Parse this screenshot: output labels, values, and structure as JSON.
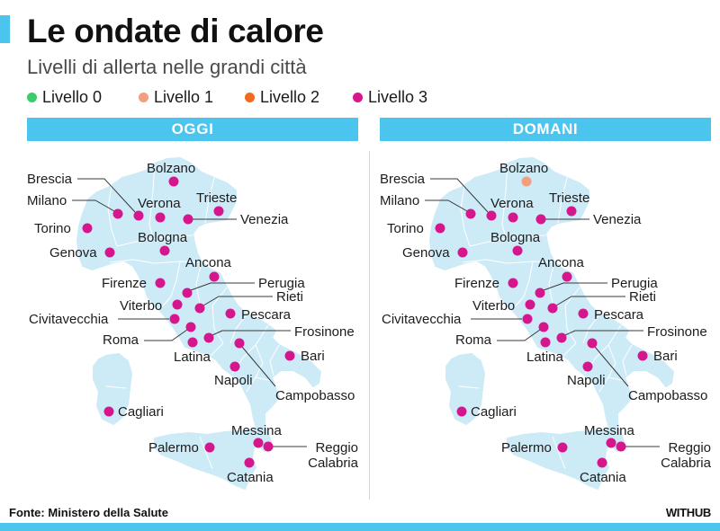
{
  "header": {
    "title": "Le ondate di calore",
    "subtitle": "Livelli di allerta nelle grandi città"
  },
  "legend": [
    {
      "level": 0,
      "label": "Livello 0",
      "color": "#3ecb6c"
    },
    {
      "level": 1,
      "label": "Livello 1",
      "color": "#f2a07c"
    },
    {
      "level": 2,
      "label": "Livello 2",
      "color": "#f26a1e"
    },
    {
      "level": 3,
      "label": "Livello 3",
      "color": "#d5168c"
    }
  ],
  "colors": {
    "accent": "#4bc4ee",
    "map_fill": "#cdeaf7"
  },
  "panels": [
    {
      "title": "OGGI",
      "cities": [
        {
          "name": "Bolzano",
          "level": 3
        },
        {
          "name": "Brescia",
          "level": 3
        },
        {
          "name": "Milano",
          "level": 3
        },
        {
          "name": "Verona",
          "level": 3
        },
        {
          "name": "Trieste",
          "level": 3
        },
        {
          "name": "Venezia",
          "level": 3
        },
        {
          "name": "Torino",
          "level": 3
        },
        {
          "name": "Genova",
          "level": 3
        },
        {
          "name": "Bologna",
          "level": 3
        },
        {
          "name": "Ancona",
          "level": 3
        },
        {
          "name": "Firenze",
          "level": 3
        },
        {
          "name": "Perugia",
          "level": 3
        },
        {
          "name": "Rieti",
          "level": 3
        },
        {
          "name": "Viterbo",
          "level": 3
        },
        {
          "name": "Civitavecchia",
          "level": 3
        },
        {
          "name": "Pescara",
          "level": 3
        },
        {
          "name": "Roma",
          "level": 3
        },
        {
          "name": "Frosinone",
          "level": 3
        },
        {
          "name": "Latina",
          "level": 3
        },
        {
          "name": "Campobasso",
          "level": 3
        },
        {
          "name": "Bari",
          "level": 3
        },
        {
          "name": "Napoli",
          "level": 3
        },
        {
          "name": "Cagliari",
          "level": 3
        },
        {
          "name": "Palermo",
          "level": 3
        },
        {
          "name": "Messina",
          "level": 3
        },
        {
          "name": "Reggio Calabria",
          "level": 3
        },
        {
          "name": "Catania",
          "level": 3
        }
      ]
    },
    {
      "title": "DOMANI",
      "cities": [
        {
          "name": "Bolzano",
          "level": 1
        },
        {
          "name": "Brescia",
          "level": 3
        },
        {
          "name": "Milano",
          "level": 3
        },
        {
          "name": "Verona",
          "level": 3
        },
        {
          "name": "Trieste",
          "level": 3
        },
        {
          "name": "Venezia",
          "level": 3
        },
        {
          "name": "Torino",
          "level": 3
        },
        {
          "name": "Genova",
          "level": 3
        },
        {
          "name": "Bologna",
          "level": 3
        },
        {
          "name": "Ancona",
          "level": 3
        },
        {
          "name": "Firenze",
          "level": 3
        },
        {
          "name": "Perugia",
          "level": 3
        },
        {
          "name": "Rieti",
          "level": 3
        },
        {
          "name": "Viterbo",
          "level": 3
        },
        {
          "name": "Civitavecchia",
          "level": 3
        },
        {
          "name": "Pescara",
          "level": 3
        },
        {
          "name": "Roma",
          "level": 3
        },
        {
          "name": "Frosinone",
          "level": 3
        },
        {
          "name": "Latina",
          "level": 3
        },
        {
          "name": "Campobasso",
          "level": 3
        },
        {
          "name": "Bari",
          "level": 3
        },
        {
          "name": "Napoli",
          "level": 3
        },
        {
          "name": "Cagliari",
          "level": 3
        },
        {
          "name": "Palermo",
          "level": 3
        },
        {
          "name": "Messina",
          "level": 3
        },
        {
          "name": "Reggio Calabria",
          "level": 3
        },
        {
          "name": "Catania",
          "level": 3
        }
      ]
    }
  ],
  "footer": {
    "source": "Fonte: Ministero della Salute",
    "brand": "WITHUB"
  }
}
